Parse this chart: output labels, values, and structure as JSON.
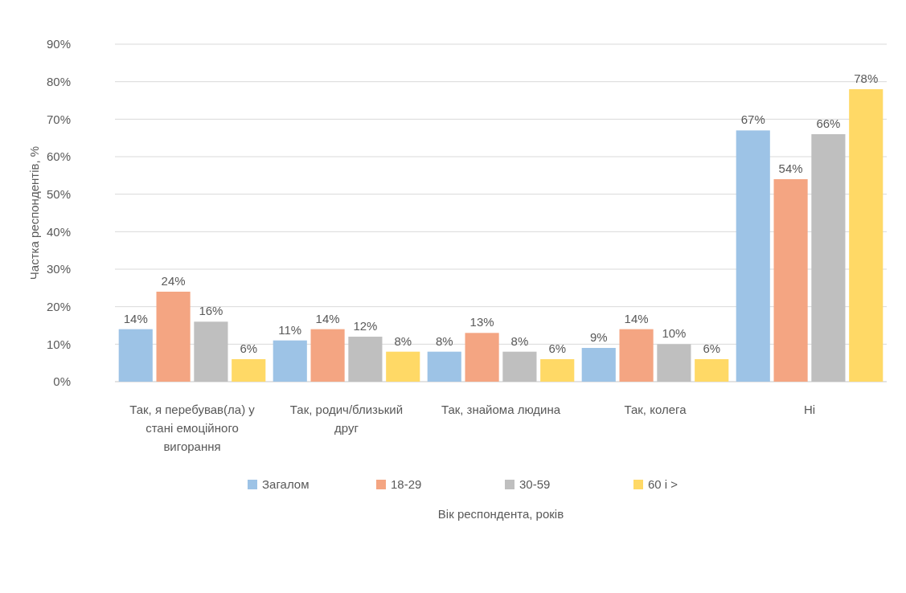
{
  "chart_data": {
    "type": "bar",
    "xlabel": "Вік респондента, років",
    "ylabel": "Частка респондентів, %",
    "categories": [
      "Так, я перебував(ла) у стані емоційного вигорання",
      "Так, родич/близький друг",
      "Так, знайома людина",
      "Так, колега",
      "Ні"
    ],
    "series": [
      {
        "name": "Загалом",
        "color": "#9dc3e6",
        "values": [
          14,
          11,
          8,
          9,
          67
        ],
        "value_labels": [
          "14%",
          "11%",
          "8%",
          "9%",
          "67%"
        ]
      },
      {
        "name": "18-29",
        "color": "#f4a582",
        "values": [
          24,
          14,
          13,
          14,
          54
        ],
        "value_labels": [
          "24%",
          "14%",
          "13%",
          "14%",
          "54%"
        ]
      },
      {
        "name": "30-59",
        "color": "#bfbfbf",
        "values": [
          16,
          12,
          8,
          10,
          66
        ],
        "value_labels": [
          "16%",
          "12%",
          "8%",
          "10%",
          "66%"
        ]
      },
      {
        "name": "60 і >",
        "color": "#ffd966",
        "values": [
          6,
          8,
          6,
          6,
          78
        ],
        "value_labels": [
          "6%",
          "8%",
          "6%",
          "6%",
          "78%"
        ]
      }
    ],
    "ylim": [
      0,
      90
    ],
    "yticks": [
      {
        "value": 0,
        "label": "0%"
      },
      {
        "value": 10,
        "label": "10%"
      },
      {
        "value": 20,
        "label": "20%"
      },
      {
        "value": 30,
        "label": "30%"
      },
      {
        "value": 40,
        "label": "40%"
      },
      {
        "value": 50,
        "label": "50%"
      },
      {
        "value": 60,
        "label": "60%"
      },
      {
        "value": 70,
        "label": "70%"
      },
      {
        "value": 80,
        "label": "80%"
      },
      {
        "value": 90,
        "label": "90%"
      }
    ],
    "grid": "y",
    "legend": "bottom"
  }
}
